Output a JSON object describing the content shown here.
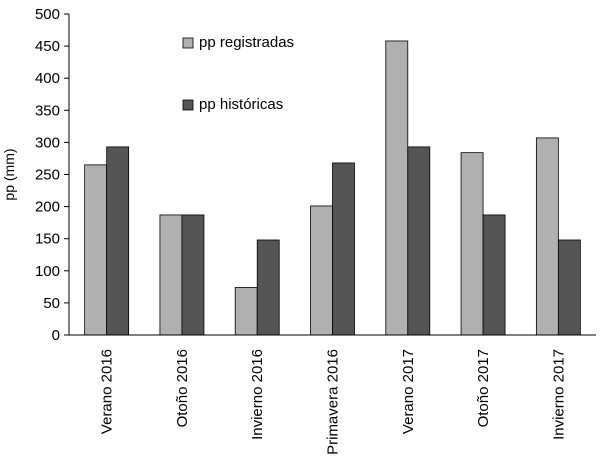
{
  "chart_data": {
    "type": "bar",
    "title": "",
    "xlabel": "",
    "ylabel": "pp (mm)",
    "ylim": [
      0,
      500
    ],
    "yticks": [
      0,
      50,
      100,
      150,
      200,
      250,
      300,
      350,
      400,
      450,
      500
    ],
    "grid": false,
    "legend_position": "top-center",
    "categories": [
      "Verano 2016",
      "Otoño 2016",
      "Invierno 2016",
      "Primavera 2016",
      "Verano 2017",
      "Otoño 2017",
      "Invierno 2017"
    ],
    "series": [
      {
        "name": "pp registradas",
        "color": "#b0b0b0",
        "values": [
          265,
          187,
          74,
          201,
          458,
          284,
          307
        ]
      },
      {
        "name": "pp históricas",
        "color": "#555555",
        "values": [
          293,
          187,
          148,
          268,
          293,
          187,
          148
        ]
      }
    ]
  }
}
